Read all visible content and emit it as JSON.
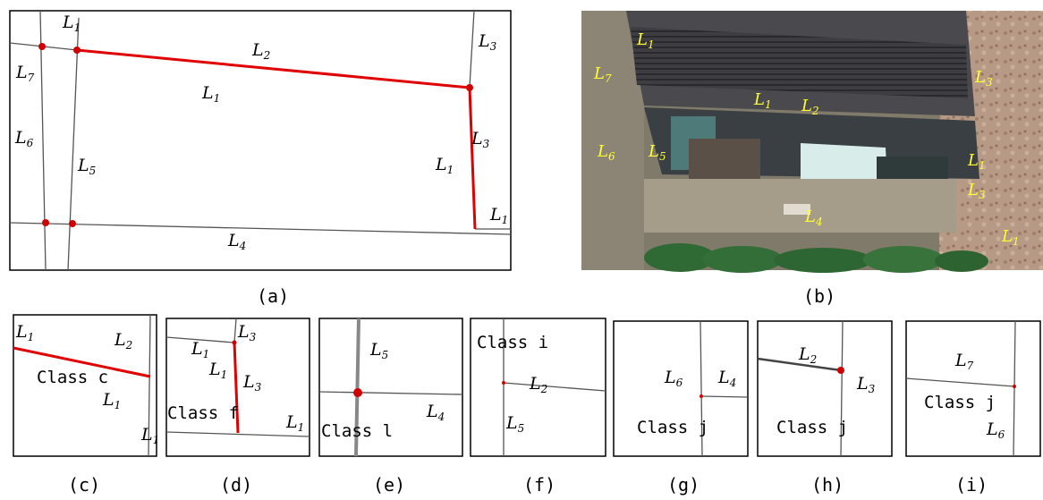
{
  "panel_a": {
    "caption": "(a)",
    "labels": [
      "L1",
      "L2",
      "L3",
      "L7",
      "L1",
      "L6",
      "L5",
      "L3",
      "L1",
      "L1",
      "L4"
    ]
  },
  "panel_b": {
    "caption": "(b)",
    "labels": [
      "L1",
      "L7",
      "L3",
      "L1",
      "L2",
      "L6",
      "L5",
      "L1",
      "L3",
      "L4",
      "L1"
    ],
    "label_color": "#ffff33"
  },
  "panel_c": {
    "caption": "(c)",
    "class_label": "Class c",
    "labels": [
      "L1",
      "L2",
      "L1",
      "L1"
    ]
  },
  "panel_d": {
    "caption": "(d)",
    "class_label": "Class f",
    "labels": [
      "L1",
      "L3",
      "L1",
      "L3",
      "L1"
    ]
  },
  "panel_e": {
    "caption": "(e)",
    "class_label": "Class l",
    "labels": [
      "L5",
      "L4"
    ]
  },
  "panel_f": {
    "caption": "(f)",
    "class_label": "Class i",
    "labels": [
      "L2",
      "L5"
    ]
  },
  "panel_g": {
    "caption": "(g)",
    "class_label": "Class j",
    "labels": [
      "L6",
      "L4"
    ]
  },
  "panel_h": {
    "caption": "(h)",
    "class_label": "Class j",
    "labels": [
      "L2",
      "L3"
    ]
  },
  "panel_i": {
    "caption": "(i)",
    "class_label": "Class j",
    "labels": [
      "L7",
      "L6"
    ]
  },
  "colors": {
    "highlight_line": "#e00000",
    "node": "#d00000",
    "line": "#555555"
  }
}
